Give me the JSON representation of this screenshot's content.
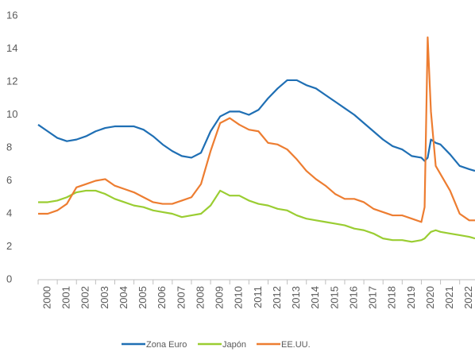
{
  "chart_data": {
    "type": "line",
    "x": [
      2000,
      2000.5,
      2001,
      2001.5,
      2002,
      2002.5,
      2003,
      2003.5,
      2004,
      2004.5,
      2005,
      2005.5,
      2006,
      2006.5,
      2007,
      2007.5,
      2008,
      2008.5,
      2009,
      2009.5,
      2010,
      2010.5,
      2011,
      2011.5,
      2012,
      2012.5,
      2013,
      2013.5,
      2014,
      2014.5,
      2015,
      2015.5,
      2016,
      2016.5,
      2017,
      2017.5,
      2018,
      2018.5,
      2019,
      2019.5,
      2020,
      2020.17,
      2020.33,
      2020.5,
      2020.75,
      2021,
      2021.5,
      2022,
      2022.5,
      2022.8
    ],
    "series": [
      {
        "name": "Zona Euro",
        "color": "#1f6fb4",
        "values": [
          9.4,
          9.0,
          8.6,
          8.4,
          8.5,
          8.7,
          9.0,
          9.2,
          9.3,
          9.3,
          9.3,
          9.1,
          8.7,
          8.2,
          7.8,
          7.5,
          7.4,
          7.7,
          9.0,
          9.9,
          10.2,
          10.2,
          10.0,
          10.3,
          11.0,
          11.6,
          12.1,
          12.1,
          11.8,
          11.6,
          11.2,
          10.8,
          10.4,
          10.0,
          9.5,
          9.0,
          8.5,
          8.1,
          7.9,
          7.5,
          7.4,
          7.2,
          7.4,
          8.5,
          8.3,
          8.2,
          7.6,
          6.9,
          6.7,
          6.6
        ]
      },
      {
        "name": "Japón",
        "color": "#9acd32",
        "values": [
          4.7,
          4.7,
          4.8,
          5.0,
          5.3,
          5.4,
          5.4,
          5.2,
          4.9,
          4.7,
          4.5,
          4.4,
          4.2,
          4.1,
          4.0,
          3.8,
          3.9,
          4.0,
          4.5,
          5.4,
          5.1,
          5.1,
          4.8,
          4.6,
          4.5,
          4.3,
          4.2,
          3.9,
          3.7,
          3.6,
          3.5,
          3.4,
          3.3,
          3.1,
          3.0,
          2.8,
          2.5,
          2.4,
          2.4,
          2.3,
          2.4,
          2.5,
          2.7,
          2.9,
          3.0,
          2.9,
          2.8,
          2.7,
          2.6,
          2.5
        ]
      },
      {
        "name": "EE.UU.",
        "color": "#ed7d31",
        "values": [
          4.0,
          4.0,
          4.2,
          4.6,
          5.6,
          5.8,
          6.0,
          6.1,
          5.7,
          5.5,
          5.3,
          5.0,
          4.7,
          4.6,
          4.6,
          4.8,
          5.0,
          5.8,
          7.8,
          9.5,
          9.8,
          9.4,
          9.1,
          9.0,
          8.3,
          8.2,
          7.9,
          7.3,
          6.6,
          6.1,
          5.7,
          5.2,
          4.9,
          4.9,
          4.7,
          4.3,
          4.1,
          3.9,
          3.9,
          3.7,
          3.5,
          4.4,
          14.7,
          10.2,
          6.9,
          6.4,
          5.4,
          4.0,
          3.6,
          3.6
        ]
      }
    ],
    "xlim": [
      2000,
      2022.8
    ],
    "xticks": [
      2000,
      2001,
      2002,
      2003,
      2004,
      2005,
      2006,
      2007,
      2008,
      2009,
      2010,
      2011,
      2012,
      2013,
      2014,
      2015,
      2016,
      2017,
      2018,
      2019,
      2020,
      2021,
      2022
    ],
    "ylim": [
      0,
      16
    ],
    "yticks": [
      0,
      2,
      4,
      6,
      8,
      10,
      12,
      14,
      16
    ],
    "grid": false
  }
}
